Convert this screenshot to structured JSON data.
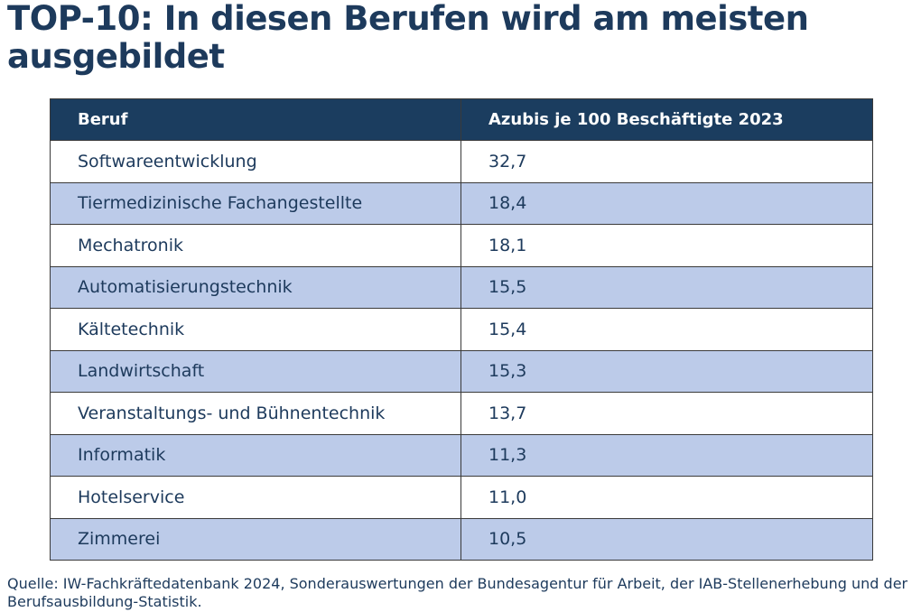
{
  "header": {
    "title": "TOP-10: In diesen Berufen wird am meisten ausgebildet"
  },
  "table": {
    "columns": [
      "Beruf",
      "Azubis je 100 Beschäftigte 2023"
    ],
    "rows": [
      [
        "Softwareentwicklung",
        "32,7"
      ],
      [
        "Tiermedizinische Fachangestellte",
        "18,4"
      ],
      [
        "Mechatronik",
        "18,1"
      ],
      [
        "Automatisierungstechnik",
        "15,5"
      ],
      [
        "Kältetechnik",
        "15,4"
      ],
      [
        "Landwirtschaft",
        "15,3"
      ],
      [
        "Veranstaltungs- und Bühnentechnik",
        "13,7"
      ],
      [
        "Informatik",
        "11,3"
      ],
      [
        "Hotelservice",
        "11,0"
      ],
      [
        "Zimmerei",
        "10,5"
      ]
    ]
  },
  "footer": {
    "source": "Quelle: IW-Fachkräftedatenbank 2024, Sonderauswertungen der Bundesagentur für Arbeit, der IAB-Stellenerhebung und der Berufsausbildung-Statistik."
  }
}
